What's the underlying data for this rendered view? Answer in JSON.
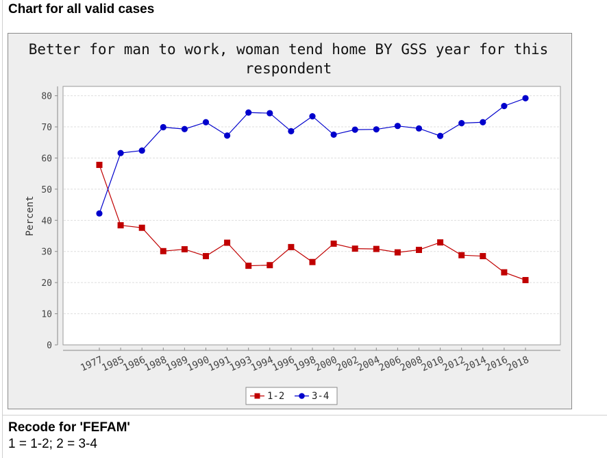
{
  "page": {
    "section_heading": "Chart for all valid cases",
    "recode_heading": "Recode for 'FEFAM'",
    "recode_mapping": "1 = 1-2; 2 = 3-4"
  },
  "chart_data": {
    "type": "line",
    "title_line1": "Better for man to work, woman tend home BY GSS year for this",
    "title_line2": "respondent",
    "xlabel": "",
    "ylabel": "Percent",
    "ylim": [
      0,
      80
    ],
    "yticks": [
      0,
      10,
      20,
      30,
      40,
      50,
      60,
      70,
      80
    ],
    "grid": true,
    "legend_position": "bottom",
    "categories": [
      "1977",
      "1985",
      "1986",
      "1988",
      "1989",
      "1990",
      "1991",
      "1993",
      "1994",
      "1996",
      "1998",
      "2000",
      "2002",
      "2004",
      "2006",
      "2008",
      "2010",
      "2012",
      "2014",
      "2016",
      "2018"
    ],
    "series": [
      {
        "name": "1-2",
        "color": "#c00000",
        "marker": "square",
        "values": [
          57.8,
          38.4,
          37.6,
          30.1,
          30.7,
          28.5,
          32.8,
          25.4,
          25.6,
          31.4,
          26.6,
          32.5,
          30.9,
          30.8,
          29.7,
          30.5,
          32.9,
          28.8,
          28.5,
          23.3,
          20.8
        ]
      },
      {
        "name": "3-4",
        "color": "#0000cc",
        "marker": "circle",
        "values": [
          42.2,
          61.6,
          62.4,
          69.9,
          69.3,
          71.5,
          67.2,
          74.6,
          74.4,
          68.6,
          73.4,
          67.5,
          69.1,
          69.2,
          70.3,
          69.5,
          67.1,
          71.2,
          71.5,
          76.7,
          79.2
        ]
      }
    ]
  }
}
